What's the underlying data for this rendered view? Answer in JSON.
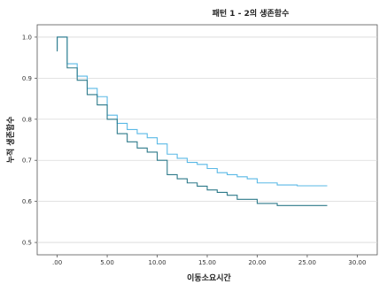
{
  "chart_data": {
    "type": "line",
    "step": true,
    "title": "패턴 1 - 2의 생존함수",
    "xlabel": "이동소요시간",
    "ylabel": "누적 생존함수",
    "xlim": [
      -2,
      32
    ],
    "ylim": [
      0.47,
      1.03
    ],
    "x_ticks": [
      0,
      5,
      10,
      15,
      20,
      25,
      30
    ],
    "x_tick_labels": [
      ".00",
      "5.00",
      "10.00",
      "15.00",
      "20.00",
      "25.00",
      "30.00"
    ],
    "y_ticks": [
      0.5,
      0.6,
      0.7,
      0.8,
      0.9,
      1.0
    ],
    "y_tick_labels": [
      "0.5",
      "0.6",
      "0.7",
      "0.8",
      "0.9",
      "1.0"
    ],
    "grid": "horizontal",
    "series": [
      {
        "color": "#5ab9e6",
        "x": [
          0.0,
          0.0,
          1.0,
          1.0,
          2.0,
          2.0,
          3.0,
          3.0,
          4.0,
          4.0,
          5.0,
          5.0,
          6.0,
          6.0,
          7.0,
          7.0,
          8.0,
          8.0,
          9.0,
          9.0,
          10.0,
          10.0,
          11.0,
          11.0,
          12.0,
          12.0,
          13.0,
          13.0,
          14.0,
          14.0,
          15.0,
          15.0,
          16.0,
          16.0,
          17.0,
          17.0,
          18.0,
          18.0,
          19.0,
          19.0,
          20.0,
          20.0,
          22.0,
          22.0,
          24.0,
          24.0,
          27.0
        ],
        "y": [
          0.97,
          1.0,
          1.0,
          0.935,
          0.935,
          0.905,
          0.905,
          0.875,
          0.875,
          0.855,
          0.855,
          0.81,
          0.81,
          0.79,
          0.79,
          0.775,
          0.775,
          0.765,
          0.765,
          0.755,
          0.755,
          0.74,
          0.74,
          0.715,
          0.715,
          0.705,
          0.705,
          0.695,
          0.695,
          0.69,
          0.69,
          0.68,
          0.68,
          0.67,
          0.67,
          0.665,
          0.665,
          0.66,
          0.66,
          0.655,
          0.655,
          0.645,
          0.645,
          0.64,
          0.64,
          0.638,
          0.638
        ]
      },
      {
        "color": "#2e7a8a",
        "x": [
          0.0,
          0.0,
          1.0,
          1.0,
          2.0,
          2.0,
          3.0,
          3.0,
          4.0,
          4.0,
          5.0,
          5.0,
          6.0,
          6.0,
          7.0,
          7.0,
          8.0,
          8.0,
          9.0,
          9.0,
          10.0,
          10.0,
          11.0,
          11.0,
          12.0,
          12.0,
          13.0,
          13.0,
          14.0,
          14.0,
          15.0,
          15.0,
          16.0,
          16.0,
          17.0,
          17.0,
          18.0,
          18.0,
          20.0,
          20.0,
          22.0,
          22.0,
          27.0
        ],
        "y": [
          0.965,
          1.0,
          1.0,
          0.925,
          0.925,
          0.895,
          0.895,
          0.86,
          0.86,
          0.835,
          0.835,
          0.8,
          0.8,
          0.765,
          0.765,
          0.745,
          0.745,
          0.73,
          0.73,
          0.72,
          0.72,
          0.7,
          0.7,
          0.665,
          0.665,
          0.655,
          0.655,
          0.645,
          0.645,
          0.637,
          0.637,
          0.628,
          0.628,
          0.622,
          0.622,
          0.615,
          0.615,
          0.605,
          0.605,
          0.595,
          0.595,
          0.59,
          0.59
        ]
      }
    ]
  }
}
